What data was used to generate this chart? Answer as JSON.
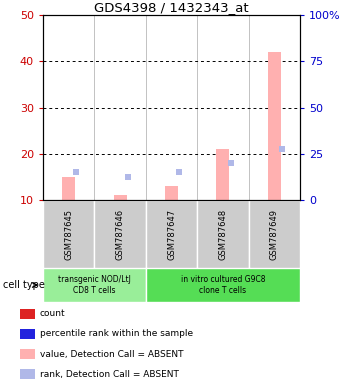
{
  "title": "GDS4398 / 1432343_at",
  "samples": [
    "GSM787645",
    "GSM787646",
    "GSM787647",
    "GSM787648",
    "GSM787649"
  ],
  "value_bars": [
    15,
    11,
    13,
    21,
    42
  ],
  "rank_markers": [
    16,
    15,
    16,
    18,
    21
  ],
  "ylim_left": [
    10,
    50
  ],
  "ylim_right": [
    0,
    100
  ],
  "yticks_left": [
    10,
    20,
    30,
    40,
    50
  ],
  "yticks_right": [
    0,
    25,
    50,
    75,
    100
  ],
  "bar_color_absent": "#ffb0b0",
  "rank_color_absent": "#b0b8e8",
  "bar_bottom": 10,
  "groups": [
    {
      "label": "transgenic NOD/LtJ\nCD8 T cells",
      "indices": [
        0,
        1
      ],
      "color": "#99ee99"
    },
    {
      "label": "in vitro cultured G9C8\nclone T cells",
      "indices": [
        2,
        3,
        4
      ],
      "color": "#55dd55"
    }
  ],
  "sample_bg_color": "#cccccc",
  "cell_type_label": "cell type",
  "legend_items": [
    {
      "label": "count",
      "color": "#dd2222"
    },
    {
      "label": "percentile rank within the sample",
      "color": "#2222dd"
    },
    {
      "label": "value, Detection Call = ABSENT",
      "color": "#ffb0b0"
    },
    {
      "label": "rank, Detection Call = ABSENT",
      "color": "#b0b8e8"
    }
  ],
  "label_color_left": "#cc0000",
  "label_color_right": "#0000cc",
  "fig_width": 3.43,
  "fig_height": 3.84,
  "dpi": 100
}
